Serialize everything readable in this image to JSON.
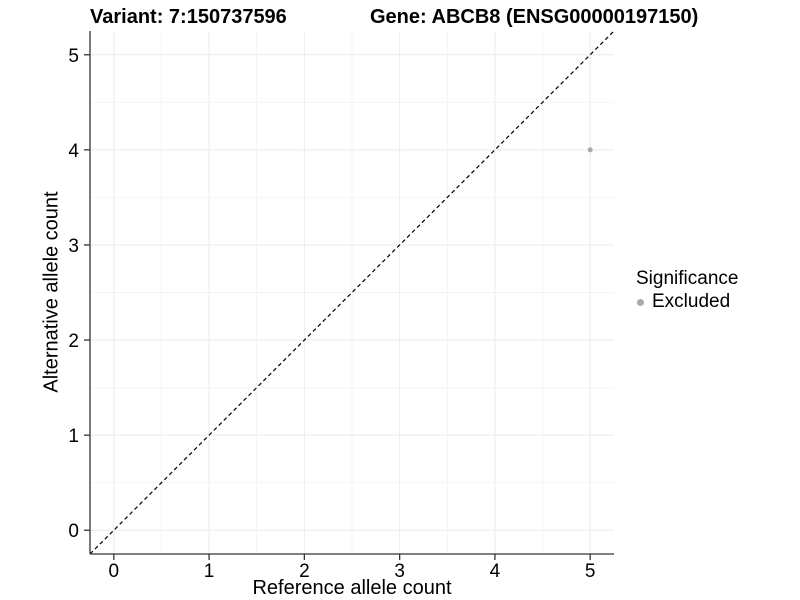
{
  "figure": {
    "background": "#ffffff"
  },
  "titles": {
    "variant": "Variant: 7:150737596",
    "gene": "Gene: ABCB8 (ENSG00000197150)"
  },
  "legend": {
    "title": "Significance",
    "items": [
      {
        "label": "Excluded",
        "color": "#aaaaaa",
        "marker": "circle"
      }
    ]
  },
  "chart_data": {
    "type": "scatter",
    "title": "",
    "xlabel": "Reference allele count",
    "ylabel": "Alternative allele count",
    "xlim": [
      -0.25,
      5.25
    ],
    "ylim": [
      -0.25,
      5.25
    ],
    "xticks": [
      0,
      1,
      2,
      3,
      4,
      5
    ],
    "yticks": [
      0,
      1,
      2,
      3,
      4,
      5
    ],
    "minor_xticks": [
      0.5,
      1.5,
      2.5,
      3.5,
      4.5
    ],
    "minor_yticks": [
      0.5,
      1.5,
      2.5,
      3.5,
      4.5
    ],
    "grid": "major+minor",
    "legend_position": "right",
    "series": [
      {
        "name": "Excluded",
        "color": "#aaaaaa",
        "point_radius": 2.5,
        "points": [
          {
            "x": 5,
            "y": 4
          }
        ]
      }
    ],
    "reference_line": {
      "type": "identity y=x",
      "style": "dashed",
      "color": "#000000"
    },
    "colors": {
      "grid_major": "#ebebeb",
      "grid_minor": "#f4f4f4",
      "axis_line": "#333333",
      "tick_mark": "#333333",
      "tick_text": "#000000"
    }
  }
}
